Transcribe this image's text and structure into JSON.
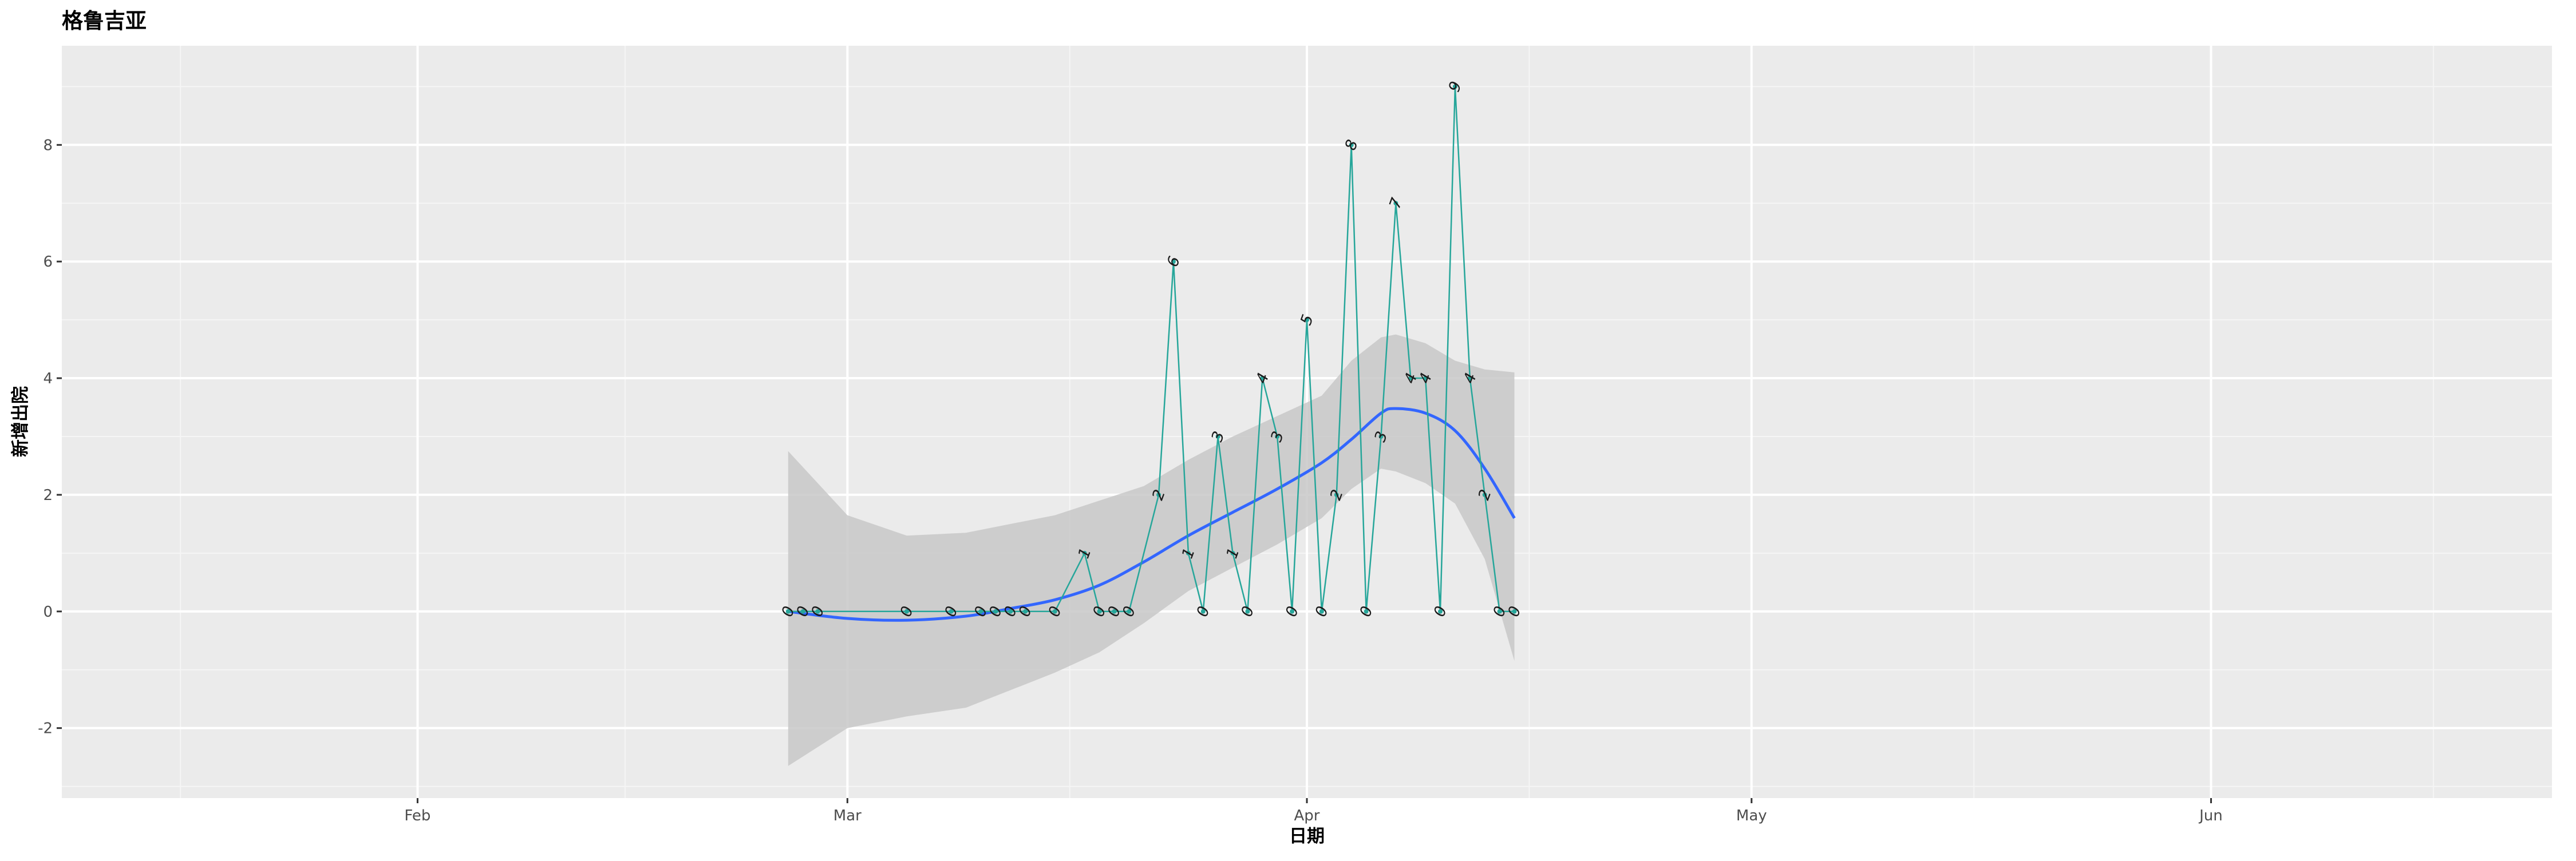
{
  "chart_data": {
    "type": "line",
    "title": "格鲁吉亚",
    "xlabel": "日期",
    "ylabel": "新增出院",
    "x_type": "date",
    "xlim": [
      "2020-01-08",
      "2020-06-24"
    ],
    "ylim": [
      -3.2,
      9.7
    ],
    "x_ticks": [
      {
        "date": "2020-02-01",
        "label": "Feb"
      },
      {
        "date": "2020-03-01",
        "label": "Mar"
      },
      {
        "date": "2020-04-01",
        "label": "Apr"
      },
      {
        "date": "2020-05-01",
        "label": "May"
      },
      {
        "date": "2020-06-01",
        "label": "Jun"
      }
    ],
    "x_minor_ticks": [
      "2020-01-16",
      "2020-02-15",
      "2020-03-16",
      "2020-04-16",
      "2020-05-16",
      "2020-06-16"
    ],
    "y_ticks": [
      -2,
      0,
      2,
      4,
      6,
      8
    ],
    "y_minor_ticks": [
      -3,
      -1,
      1,
      3,
      5,
      7,
      9
    ],
    "grid": true,
    "legend": "none",
    "series": [
      {
        "type": "line",
        "show_labels": true,
        "points": [
          {
            "x": "2020-02-26",
            "y": 0
          },
          {
            "x": "2020-02-27",
            "y": 0
          },
          {
            "x": "2020-02-28",
            "y": 0
          },
          {
            "x": "2020-03-05",
            "y": 0
          },
          {
            "x": "2020-03-08",
            "y": 0
          },
          {
            "x": "2020-03-10",
            "y": 0
          },
          {
            "x": "2020-03-11",
            "y": 0
          },
          {
            "x": "2020-03-12",
            "y": 0
          },
          {
            "x": "2020-03-13",
            "y": 0
          },
          {
            "x": "2020-03-15",
            "y": 0
          },
          {
            "x": "2020-03-17",
            "y": 1
          },
          {
            "x": "2020-03-18",
            "y": 0
          },
          {
            "x": "2020-03-19",
            "y": 0
          },
          {
            "x": "2020-03-20",
            "y": 0
          },
          {
            "x": "2020-03-22",
            "y": 2
          },
          {
            "x": "2020-03-23",
            "y": 6
          },
          {
            "x": "2020-03-24",
            "y": 1
          },
          {
            "x": "2020-03-25",
            "y": 0
          },
          {
            "x": "2020-03-26",
            "y": 3
          },
          {
            "x": "2020-03-27",
            "y": 1
          },
          {
            "x": "2020-03-28",
            "y": 0
          },
          {
            "x": "2020-03-29",
            "y": 4
          },
          {
            "x": "2020-03-30",
            "y": 3
          },
          {
            "x": "2020-03-31",
            "y": 0
          },
          {
            "x": "2020-04-01",
            "y": 5
          },
          {
            "x": "2020-04-02",
            "y": 0
          },
          {
            "x": "2020-04-03",
            "y": 2
          },
          {
            "x": "2020-04-04",
            "y": 8
          },
          {
            "x": "2020-04-05",
            "y": 0
          },
          {
            "x": "2020-04-06",
            "y": 3
          },
          {
            "x": "2020-04-07",
            "y": 7
          },
          {
            "x": "2020-04-08",
            "y": 4
          },
          {
            "x": "2020-04-09",
            "y": 4
          },
          {
            "x": "2020-04-10",
            "y": 0
          },
          {
            "x": "2020-04-11",
            "y": 9
          },
          {
            "x": "2020-04-12",
            "y": 4
          },
          {
            "x": "2020-04-13",
            "y": 2
          },
          {
            "x": "2020-04-14",
            "y": 0
          },
          {
            "x": "2020-04-15",
            "y": 0
          }
        ]
      },
      {
        "type": "smooth",
        "points": [
          {
            "x": "2020-02-26",
            "y": 0.0
          },
          {
            "x": "2020-03-01",
            "y": -0.12
          },
          {
            "x": "2020-03-05",
            "y": -0.15
          },
          {
            "x": "2020-03-09",
            "y": -0.08
          },
          {
            "x": "2020-03-12",
            "y": 0.05
          },
          {
            "x": "2020-03-15",
            "y": 0.2
          },
          {
            "x": "2020-03-18",
            "y": 0.45
          },
          {
            "x": "2020-03-21",
            "y": 0.85
          },
          {
            "x": "2020-03-24",
            "y": 1.3
          },
          {
            "x": "2020-03-27",
            "y": 1.7
          },
          {
            "x": "2020-03-30",
            "y": 2.1
          },
          {
            "x": "2020-04-02",
            "y": 2.55
          },
          {
            "x": "2020-04-04",
            "y": 2.95
          },
          {
            "x": "2020-04-06",
            "y": 3.4
          },
          {
            "x": "2020-04-07",
            "y": 3.48
          },
          {
            "x": "2020-04-09",
            "y": 3.4
          },
          {
            "x": "2020-04-11",
            "y": 3.1
          },
          {
            "x": "2020-04-13",
            "y": 2.45
          },
          {
            "x": "2020-04-15",
            "y": 1.6
          }
        ],
        "band_lower": [
          -2.65,
          -2.0,
          -1.8,
          -1.65,
          -1.35,
          -1.05,
          -0.7,
          -0.2,
          0.35,
          0.75,
          1.15,
          1.6,
          2.1,
          2.45,
          2.4,
          2.2,
          1.85,
          0.9,
          -0.85
        ],
        "band_upper": [
          2.75,
          1.65,
          1.3,
          1.35,
          1.5,
          1.65,
          1.9,
          2.15,
          2.6,
          3.0,
          3.35,
          3.7,
          4.3,
          4.7,
          4.75,
          4.6,
          4.3,
          4.15,
          4.1
        ]
      }
    ]
  },
  "colors": {
    "panel_bg": "#ebebeb",
    "grid_major": "#ffffff",
    "grid_minor": "#f5f5f5",
    "tick_text": "#4d4d4d",
    "data_line": "#26a69a",
    "data_label": "#1a1a1a",
    "smooth_line": "#3366ff",
    "confidence_band": "#c8c8c8"
  }
}
